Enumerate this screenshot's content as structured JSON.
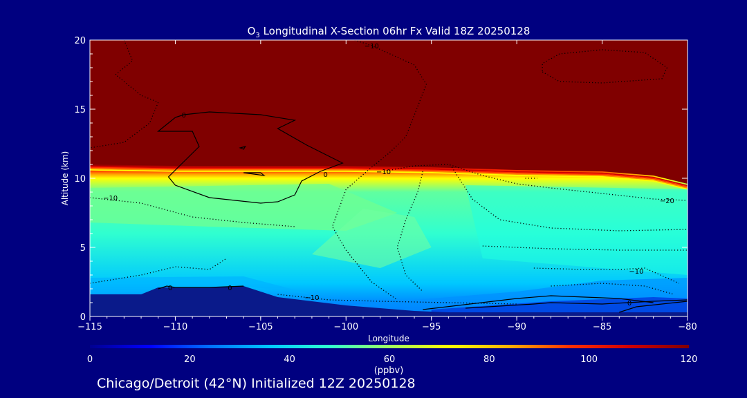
{
  "chart_data": {
    "type": "heatmap",
    "title_main": "O",
    "title_sub": "3",
    "title_rest": " Longitudinal X-Section 06hr  Fx Valid 18Z 20250128",
    "xlabel": "Longitude",
    "ylabel": "Altitude (km)",
    "xlim": [
      -115,
      -80
    ],
    "ylim": [
      0,
      20
    ],
    "x_ticks": [
      -115,
      -110,
      -105,
      -100,
      -95,
      -90,
      -85,
      -80
    ],
    "x_tick_labels": [
      "−115",
      "−110",
      "−105",
      "−100",
      "−95",
      "−90",
      "−85",
      "−80"
    ],
    "y_ticks": [
      0,
      5,
      10,
      15,
      20
    ],
    "y_tick_labels": [
      "0",
      "5",
      "10",
      "15",
      "20"
    ],
    "colorbar": {
      "min": 0,
      "max": 120,
      "ticks": [
        0,
        20,
        40,
        60,
        80,
        100,
        120
      ],
      "tick_labels": [
        "0",
        "20",
        "40",
        "60",
        "80",
        "100",
        "120"
      ],
      "unit_label": "(ppbv)",
      "colors": [
        "#000090",
        "#0000ff",
        "#0070ff",
        "#00c8ff",
        "#30ffd0",
        "#a0ff60",
        "#ffff00",
        "#ffb000",
        "#ff3000",
        "#d00000",
        "#800000"
      ]
    },
    "ozone_field_description_values": {
      "stratosphere_ppbv": 120,
      "tropopause_altitude_km": 10.5,
      "upper_troposphere_ppbv": 50,
      "mid_troposphere_ppbv": 45,
      "lower_troposphere_ppbv": 35,
      "surface_ppbv": 20
    },
    "contour_labels": [
      {
        "text": "−10",
        "lon": -98.5,
        "alt": 19.6
      },
      {
        "text": "0",
        "lon": -109.5,
        "alt": 14.6
      },
      {
        "text": "0",
        "lon": -101.2,
        "alt": 10.3
      },
      {
        "text": "−10",
        "lon": -97.8,
        "alt": 10.5
      },
      {
        "text": "−10",
        "lon": -113.8,
        "alt": 8.6
      },
      {
        "text": "−20",
        "lon": -81.2,
        "alt": 8.4
      },
      {
        "text": "−10",
        "lon": -83.0,
        "alt": 3.3
      },
      {
        "text": "0",
        "lon": -110.3,
        "alt": 2.1
      },
      {
        "text": "0",
        "lon": -106.8,
        "alt": 2.1
      },
      {
        "text": "−10",
        "lon": -102.0,
        "alt": 1.4
      },
      {
        "text": "0",
        "lon": -83.4,
        "alt": 1.0
      }
    ],
    "terrain_km": [
      [
        -115,
        1.6
      ],
      [
        -113,
        1.6
      ],
      [
        -112,
        1.6
      ],
      [
        -111,
        2.1
      ],
      [
        -110,
        2.1
      ],
      [
        -108,
        2.1
      ],
      [
        -106,
        2.2
      ],
      [
        -105,
        1.8
      ],
      [
        -104,
        1.4
      ],
      [
        -102,
        1.1
      ],
      [
        -100,
        0.8
      ],
      [
        -98,
        0.6
      ],
      [
        -96,
        0.4
      ],
      [
        -94,
        0.3
      ],
      [
        -92,
        0.3
      ],
      [
        -90,
        0.3
      ],
      [
        -88,
        0.3
      ],
      [
        -86,
        0.3
      ],
      [
        -84,
        0.3
      ],
      [
        -82,
        0.3
      ],
      [
        -80,
        0.3
      ]
    ]
  },
  "footer": {
    "text": "Chicago/Detroit (42°N) Initialized 12Z 20250128"
  }
}
